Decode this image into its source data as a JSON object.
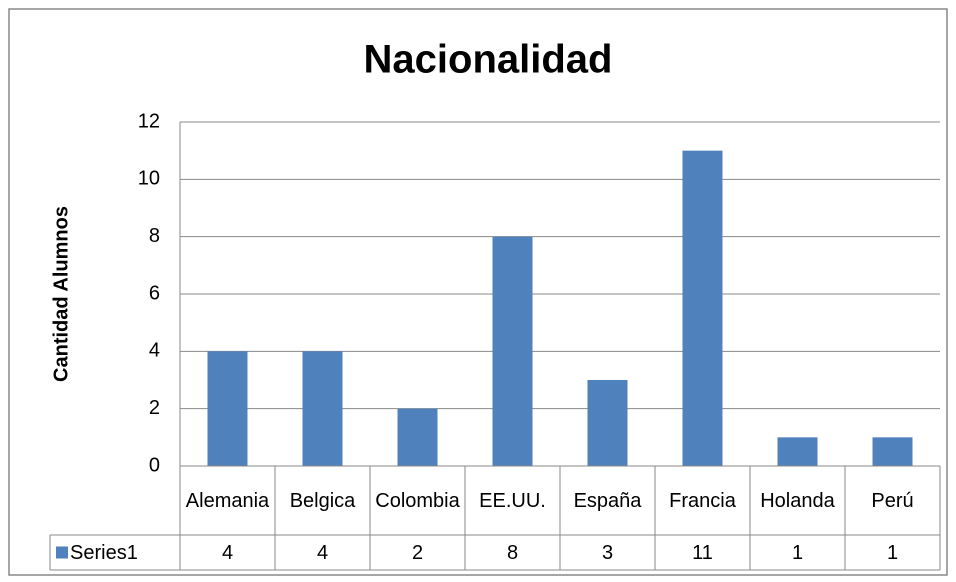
{
  "chart_data": {
    "type": "bar",
    "title": "Nacionalidad",
    "y_label": "Cantidad Alumnos",
    "categories": [
      "Alemania",
      "Belgica",
      "Colombia",
      "EE.UU.",
      "España",
      "Francia",
      "Holanda",
      "Perú"
    ],
    "series": [
      {
        "name": "Series1",
        "color": "#4f81bd",
        "values": [
          4,
          4,
          2,
          8,
          3,
          11,
          1,
          1
        ]
      }
    ],
    "ylim": [
      0,
      12
    ],
    "yticks": [
      0,
      2,
      4,
      6,
      8,
      10,
      12
    ],
    "grid": true,
    "data_table": true
  }
}
